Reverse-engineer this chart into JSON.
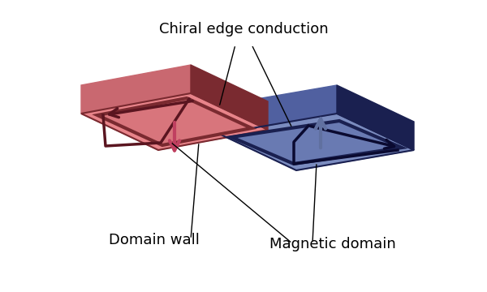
{
  "bg_color": "#ffffff",
  "pink_top_color": "#e8848a",
  "pink_side_color": "#c96870",
  "pink_dark_color": "#7a2a30",
  "blue_top_color": "#7b8cbf",
  "blue_side_color": "#5060a0",
  "blue_dark_color": "#1a2050",
  "chiral_arrow_pink": "#5a1520",
  "chiral_arrow_blue": "#0a0a30",
  "moment_arrow_pink": "#c04060",
  "moment_arrow_blue": "#6070a0",
  "label_domain_wall": "Domain wall",
  "label_magnetic_domain": "Magnetic domain",
  "label_chiral": "Chiral edge conduction",
  "font_size": 13
}
